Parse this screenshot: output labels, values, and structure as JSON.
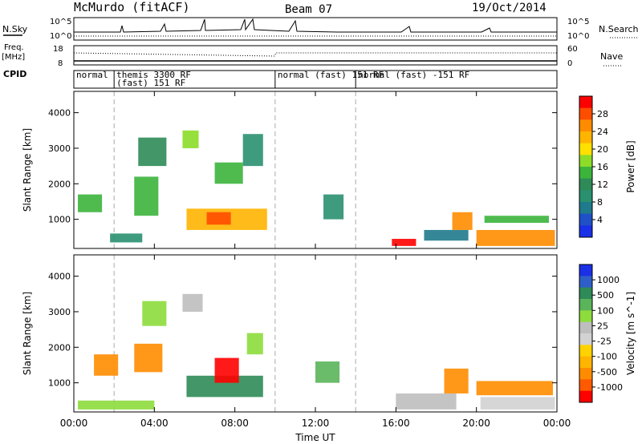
{
  "header": {
    "station": "McMurdo (fitACF)",
    "beam": "Beam 07",
    "date": "19/Oct/2014"
  },
  "strip": {
    "nsky_label": "N.Sky",
    "nsky_ticks": [
      "10^5",
      "10^0"
    ],
    "nsearch_label": "N.Search",
    "nsearch_ticks": [
      "10^5",
      "10^0"
    ],
    "freq_label_1": "Freq.",
    "freq_label_2": "[MHz]",
    "freq_ticks": [
      "18",
      "8"
    ],
    "nave_label": "Nave",
    "nave_ticks": [
      "60",
      "0"
    ],
    "cpid_label": "CPID",
    "cpid_segments": [
      {
        "start_hour": 0,
        "end_hour": 2,
        "lines": [
          "normal"
        ]
      },
      {
        "start_hour": 2,
        "end_hour": 10,
        "lines": [
          "themis 3300 RF",
          "(fast) 151 RF"
        ]
      },
      {
        "start_hour": 10,
        "end_hour": 14,
        "lines": [
          "normal (fast) 151 RF"
        ]
      },
      {
        "start_hour": 14,
        "end_hour": 24,
        "lines": [
          "normal (fast) -151 RF"
        ]
      }
    ]
  },
  "colorbar_power": {
    "label": "Power [dB]",
    "ticks": [
      "28",
      "24",
      "20",
      "16",
      "12",
      "8",
      "4"
    ],
    "colors": [
      "#ff0000",
      "#ff4d00",
      "#ff8c00",
      "#ffb400",
      "#ffe000",
      "#8cdc28",
      "#3cb43c",
      "#2e8b57",
      "#2a9070",
      "#1f7a8c",
      "#2050c8",
      "#1a30e6"
    ]
  },
  "colorbar_velocity": {
    "label": "Velocity [m s^-1]",
    "ticks": [
      "1000",
      "500",
      "100",
      "25",
      "-25",
      "-100",
      "-500",
      "-1000"
    ],
    "colors": [
      "#1a30e6",
      "#2e5fc8",
      "#2e8b57",
      "#5ab45a",
      "#8cdc3c",
      "#bebebe",
      "#d2d2d2",
      "#ffd200",
      "#ffb400",
      "#ff8c00",
      "#ff5a00",
      "#ff0000"
    ]
  },
  "chart_data": [
    {
      "type": "heatmap",
      "title": "Power",
      "xlabel": "Time UT",
      "ylabel": "Slant Range [km]",
      "xlim": [
        0,
        24
      ],
      "ylim": [
        180,
        4600
      ],
      "x_ticks": [
        "00:00",
        "04:00",
        "08:00",
        "12:00",
        "16:00",
        "20:00",
        "00:00"
      ],
      "y_ticks": [
        1000,
        2000,
        3000,
        4000
      ],
      "colorbar": "Power [dB]",
      "regions": [
        {
          "t0": 0.2,
          "t1": 1.4,
          "r0": 1200,
          "r1": 1700,
          "value": 12
        },
        {
          "t0": 1.8,
          "t1": 3.4,
          "r0": 350,
          "r1": 600,
          "value": 8
        },
        {
          "t0": 3.0,
          "t1": 4.2,
          "r0": 1100,
          "r1": 2200,
          "value": 14
        },
        {
          "t0": 3.2,
          "t1": 4.6,
          "r0": 2500,
          "r1": 3300,
          "value": 10
        },
        {
          "t0": 5.4,
          "t1": 6.2,
          "r0": 3000,
          "r1": 3500,
          "value": 16
        },
        {
          "t0": 5.6,
          "t1": 9.6,
          "r0": 700,
          "r1": 1300,
          "value": 20
        },
        {
          "t0": 7.0,
          "t1": 8.4,
          "r0": 2000,
          "r1": 2600,
          "value": 12
        },
        {
          "t0": 6.6,
          "t1": 7.8,
          "r0": 850,
          "r1": 1200,
          "value": 26
        },
        {
          "t0": 8.4,
          "t1": 9.4,
          "r0": 2500,
          "r1": 3400,
          "value": 8
        },
        {
          "t0": 12.4,
          "t1": 13.4,
          "r0": 1000,
          "r1": 1700,
          "value": 8
        },
        {
          "t0": 15.8,
          "t1": 17.0,
          "r0": 250,
          "r1": 450,
          "value": 28
        },
        {
          "t0": 17.4,
          "t1": 19.6,
          "r0": 400,
          "r1": 700,
          "value": 6
        },
        {
          "t0": 18.8,
          "t1": 19.8,
          "r0": 700,
          "r1": 1200,
          "value": 24
        },
        {
          "t0": 20.0,
          "t1": 23.9,
          "r0": 250,
          "r1": 700,
          "value": 22
        },
        {
          "t0": 20.4,
          "t1": 23.6,
          "r0": 900,
          "r1": 1100,
          "value": 14
        }
      ]
    },
    {
      "type": "heatmap",
      "title": "Velocity",
      "xlabel": "Time UT",
      "ylabel": "Slant Range [km]",
      "xlim": [
        0,
        24
      ],
      "ylim": [
        180,
        4600
      ],
      "x_ticks": [
        "00:00",
        "04:00",
        "08:00",
        "12:00",
        "16:00",
        "20:00",
        "00:00"
      ],
      "y_ticks": [
        1000,
        2000,
        3000,
        4000
      ],
      "colorbar": "Velocity [m s^-1]",
      "regions": [
        {
          "t0": 0.2,
          "t1": 4.0,
          "r0": 250,
          "r1": 500,
          "value": 120
        },
        {
          "t0": 1.0,
          "t1": 2.2,
          "r0": 1200,
          "r1": 1800,
          "value": -120
        },
        {
          "t0": 3.0,
          "t1": 4.4,
          "r0": 1300,
          "r1": 2100,
          "value": -200
        },
        {
          "t0": 3.4,
          "t1": 4.6,
          "r0": 2600,
          "r1": 3300,
          "value": 150
        },
        {
          "t0": 5.4,
          "t1": 6.4,
          "r0": 3000,
          "r1": 3500,
          "value": 60
        },
        {
          "t0": 5.6,
          "t1": 9.4,
          "r0": 600,
          "r1": 1200,
          "value": 600
        },
        {
          "t0": 7.0,
          "t1": 8.2,
          "r0": 1000,
          "r1": 1700,
          "value": -600
        },
        {
          "t0": 8.6,
          "t1": 9.4,
          "r0": 1800,
          "r1": 2400,
          "value": 250
        },
        {
          "t0": 12.0,
          "t1": 13.2,
          "r0": 1000,
          "r1": 1600,
          "value": 300
        },
        {
          "t0": 16.0,
          "t1": 19.0,
          "r0": 250,
          "r1": 700,
          "value": 60
        },
        {
          "t0": 18.4,
          "t1": 19.6,
          "r0": 700,
          "r1": 1400,
          "value": -300
        },
        {
          "t0": 20.0,
          "t1": 23.8,
          "r0": 650,
          "r1": 1050,
          "value": -120
        },
        {
          "t0": 20.2,
          "t1": 23.9,
          "r0": 250,
          "r1": 600,
          "value": 20
        }
      ]
    }
  ]
}
